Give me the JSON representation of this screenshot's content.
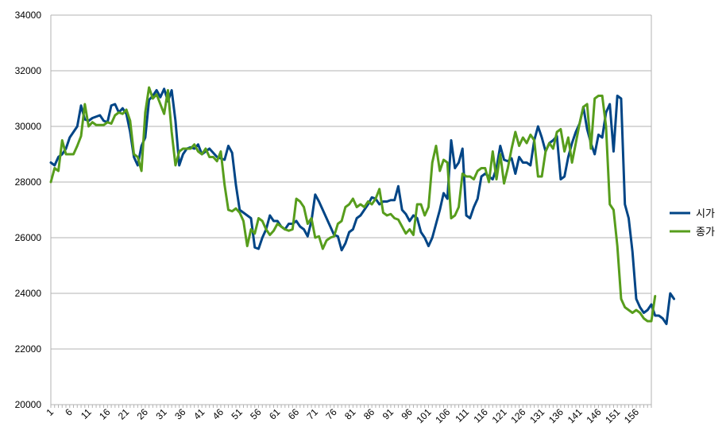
{
  "chart_data": {
    "type": "line",
    "title": "",
    "xlabel": "",
    "ylabel": "",
    "ylim": [
      20000,
      34000
    ],
    "yticks": [
      20000,
      22000,
      24000,
      26000,
      28000,
      30000,
      32000,
      34000
    ],
    "xlim": [
      1,
      160
    ],
    "xticks": [
      1,
      6,
      11,
      16,
      21,
      26,
      31,
      36,
      41,
      46,
      51,
      56,
      61,
      66,
      71,
      76,
      81,
      86,
      91,
      96,
      101,
      106,
      111,
      116,
      121,
      126,
      131,
      136,
      141,
      146,
      151,
      156
    ],
    "grid": true,
    "legend_position": "right",
    "series": [
      {
        "name": "시가",
        "color": "#004586",
        "values": [
          28700,
          28600,
          28900,
          29000,
          29200,
          29600,
          29800,
          30000,
          30750,
          30250,
          30200,
          30300,
          30350,
          30400,
          30200,
          30150,
          30750,
          30800,
          30500,
          30650,
          30450,
          29800,
          28900,
          28600,
          29300,
          29600,
          30950,
          31100,
          31300,
          31050,
          31350,
          30900,
          31300,
          30200,
          28600,
          29000,
          29200,
          29250,
          29200,
          29350,
          29000,
          29100,
          29200,
          29050,
          28900,
          28850,
          28800,
          29300,
          29050,
          27900,
          27000,
          26900,
          26800,
          26700,
          25650,
          25600,
          26000,
          26300,
          26800,
          26600,
          26600,
          26400,
          26300,
          26500,
          26500,
          26600,
          26400,
          26300,
          26050,
          26600,
          27550,
          27300,
          27000,
          26700,
          26400,
          26100,
          26050,
          25550,
          25800,
          26200,
          26300,
          26700,
          26800,
          27000,
          27200,
          27450,
          27400,
          27200,
          27300,
          27300,
          27350,
          27350,
          27850,
          27000,
          26850,
          26600,
          26800,
          26700,
          26200,
          26000,
          25700,
          26000,
          26500,
          27000,
          27600,
          27400,
          29500,
          28500,
          28700,
          29200,
          26800,
          26700,
          27100,
          27400,
          28200,
          28300,
          28200,
          28100,
          28500,
          29300,
          28800,
          28750,
          28850,
          28300,
          28900,
          28700,
          28700,
          28600,
          29500,
          30000,
          29600,
          29100,
          29400,
          29500,
          29650,
          28100,
          28200,
          28900,
          29400,
          29800,
          30100,
          30700,
          29900,
          29400,
          29000,
          29700,
          29600,
          30500,
          30800,
          29100,
          31100,
          31000,
          27200,
          26700,
          25500,
          23800,
          23500,
          23300,
          23400,
          23600,
          23200,
          23200,
          23100,
          22900,
          24000,
          23800
        ]
      },
      {
        "name": "종가",
        "color": "#579d1c",
        "values": [
          28000,
          28500,
          28400,
          29500,
          29000,
          29000,
          29000,
          29300,
          29650,
          30800,
          30000,
          30150,
          30050,
          30050,
          30050,
          30150,
          30100,
          30400,
          30500,
          30450,
          30600,
          30200,
          29000,
          28900,
          28400,
          30500,
          31400,
          31000,
          31150,
          30800,
          30450,
          31300,
          29800,
          28600,
          29100,
          29200,
          29200,
          29200,
          29350,
          29100,
          29000,
          29200,
          28900,
          28900,
          28750,
          29100,
          27900,
          27000,
          26950,
          27050,
          26900,
          26600,
          25700,
          26300,
          26150,
          26700,
          26600,
          26300,
          26100,
          26250,
          26500,
          26400,
          26300,
          26250,
          26300,
          27400,
          27300,
          27100,
          26500,
          26700,
          26000,
          26050,
          25600,
          25900,
          26000,
          26050,
          26500,
          26600,
          27100,
          27200,
          27400,
          27100,
          27200,
          27100,
          27300,
          27200,
          27400,
          27750,
          26900,
          26800,
          26850,
          26700,
          26650,
          26400,
          26150,
          26300,
          26100,
          27200,
          27200,
          26800,
          27100,
          28700,
          29300,
          28400,
          28800,
          28700,
          26700,
          26800,
          27100,
          28300,
          28200,
          28200,
          28100,
          28400,
          28500,
          28500,
          28000,
          29100,
          28100,
          29000,
          27950,
          28500,
          29200,
          29800,
          29300,
          29600,
          29400,
          29700,
          29500,
          28200,
          28200,
          29100,
          29400,
          29200,
          29800,
          29900,
          29100,
          29600,
          28700,
          29400,
          30100,
          30700,
          30800,
          29200,
          31000,
          31100,
          31100,
          30000,
          27200,
          27000,
          25700,
          23800,
          23500,
          23400,
          23300,
          23400,
          23300,
          23100,
          23000,
          23000,
          23900
        ]
      }
    ]
  }
}
